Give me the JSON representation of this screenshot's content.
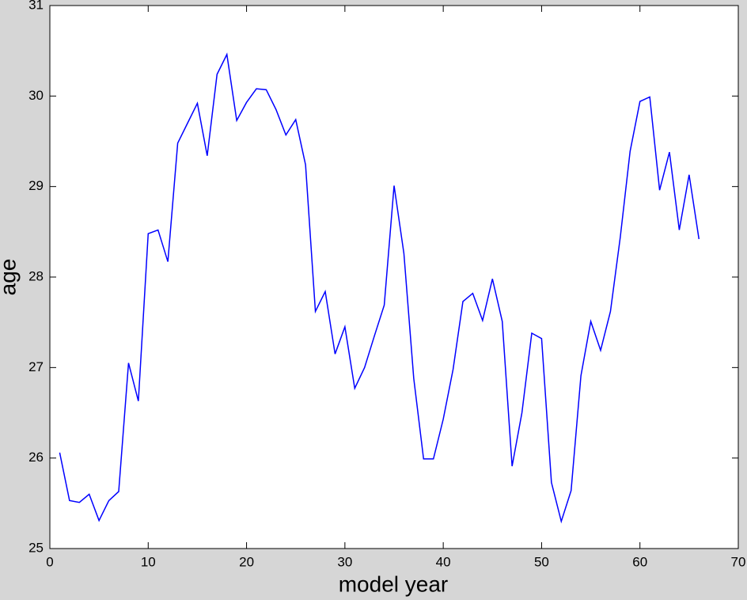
{
  "chart_data": {
    "type": "line",
    "xlabel": "model year",
    "ylabel": "age",
    "x": [
      1,
      2,
      3,
      4,
      5,
      6,
      7,
      8,
      9,
      10,
      11,
      12,
      13,
      14,
      15,
      16,
      17,
      18,
      19,
      20,
      21,
      22,
      23,
      24,
      25,
      26,
      27,
      28,
      29,
      30,
      31,
      32,
      33,
      34,
      35,
      36,
      37,
      38,
      39,
      40,
      41,
      42,
      43,
      44,
      45,
      46,
      47,
      48,
      49,
      50,
      51,
      52,
      53,
      54,
      55,
      56,
      57,
      58,
      59,
      60,
      61,
      62,
      63,
      64,
      65,
      66
    ],
    "series": [
      {
        "color": "#0000ff",
        "values": [
          26.06,
          25.53,
          25.51,
          25.6,
          25.31,
          25.53,
          25.63,
          27.05,
          26.63,
          28.48,
          28.52,
          28.17,
          29.48,
          29.7,
          29.92,
          29.34,
          30.24,
          30.46,
          29.73,
          29.93,
          30.08,
          30.07,
          29.85,
          29.57,
          29.74,
          29.24,
          27.62,
          27.84,
          27.15,
          27.45,
          26.77,
          27.0,
          27.35,
          27.69,
          29.01,
          28.26,
          26.88,
          25.99,
          25.99,
          26.43,
          26.98,
          27.73,
          27.82,
          27.52,
          27.98,
          27.51,
          25.91,
          26.5,
          27.38,
          27.32,
          25.73,
          25.3,
          25.64,
          26.91,
          27.51,
          27.19,
          27.62,
          28.44,
          29.39,
          29.94,
          29.99,
          28.96,
          29.38,
          28.52,
          29.13,
          28.42
        ]
      }
    ],
    "xlim": [
      0,
      70
    ],
    "xticks": [
      0,
      10,
      20,
      30,
      40,
      50,
      60,
      70
    ],
    "ylim": [
      25,
      31
    ],
    "yticks": [
      25,
      26,
      27,
      28,
      29,
      30,
      31
    ]
  }
}
